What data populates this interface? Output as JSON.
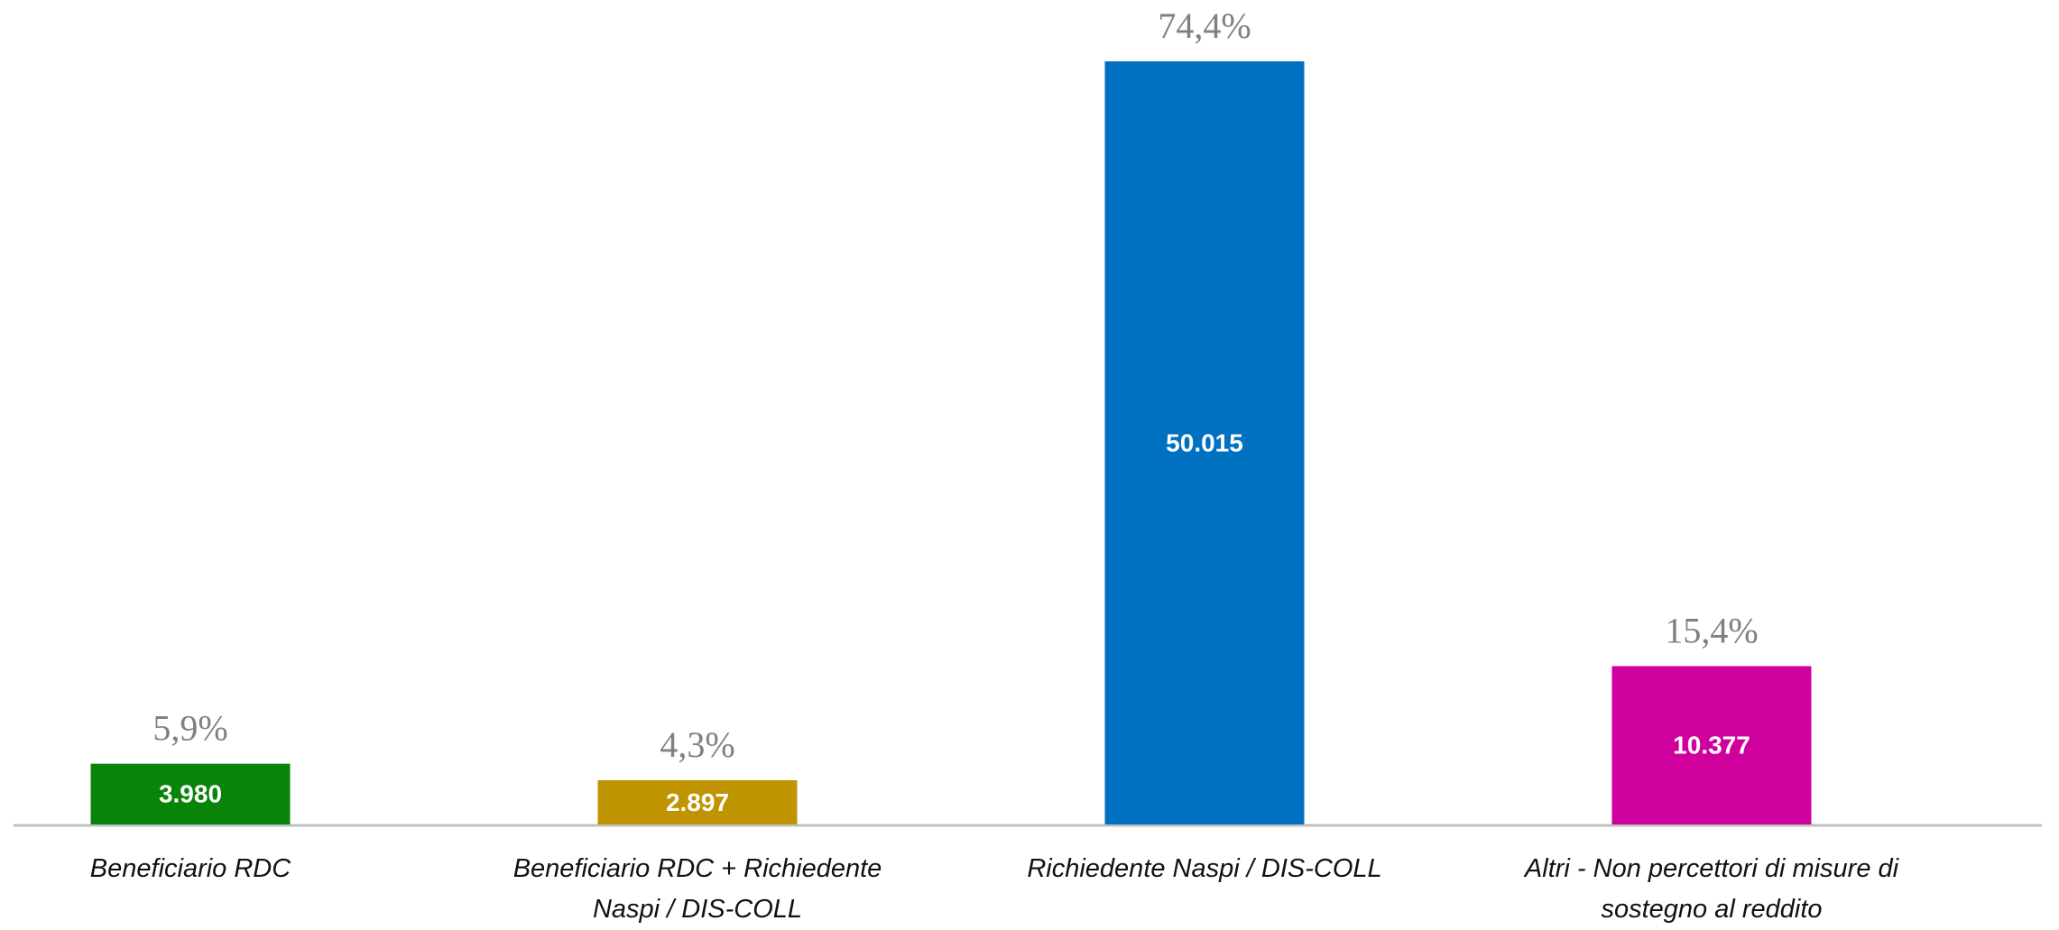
{
  "chart_data": {
    "type": "bar",
    "categories": [
      "Beneficiario RDC",
      "Beneficiario RDC + Richiedente\nNaspi / DIS-COLL",
      "Richiedente Naspi / DIS-COLL",
      "Altri - Non percettori di misure di\nsostegno al reddito"
    ],
    "values": [
      3980,
      2897,
      50015,
      10377
    ],
    "value_labels": [
      "3.980",
      "2.897",
      "50.015",
      "10.377"
    ],
    "shares": [
      5.9,
      4.3,
      74.4,
      15.4
    ],
    "share_labels": [
      "5,9%",
      "4,3%",
      "74,4%",
      "15,4%"
    ],
    "colors": [
      "#088408",
      "#c09400",
      "#0070c0",
      "#d0009c"
    ]
  }
}
